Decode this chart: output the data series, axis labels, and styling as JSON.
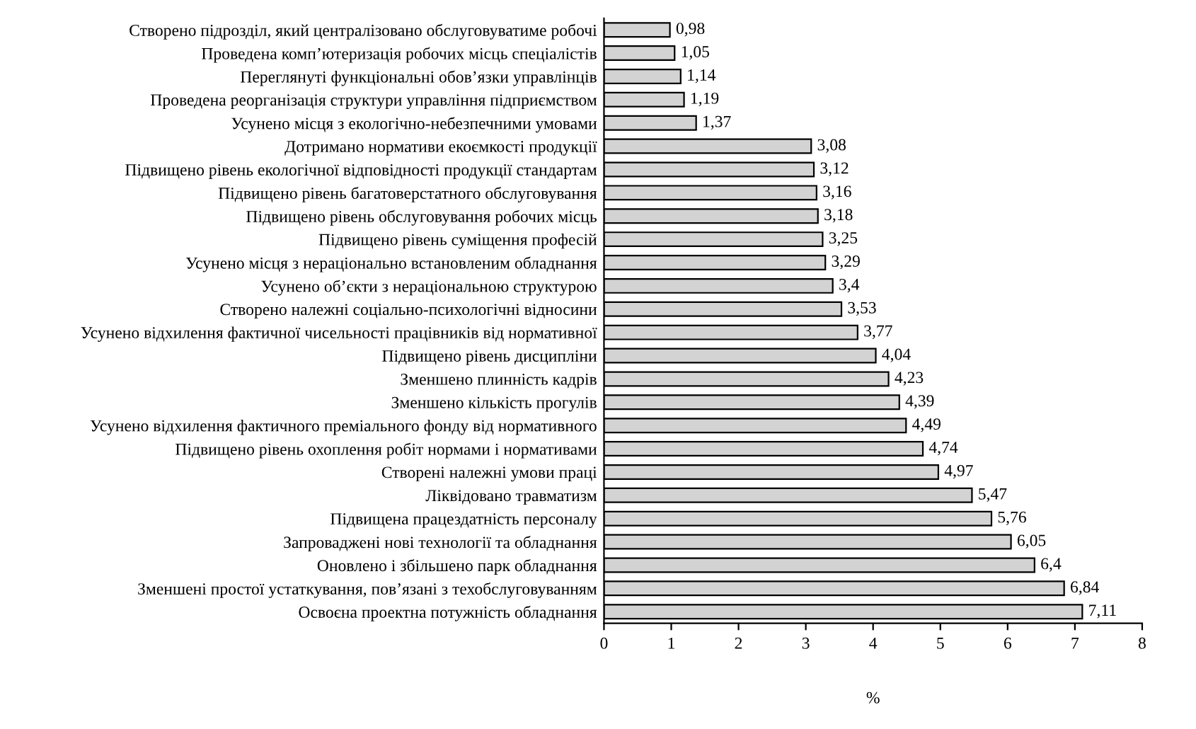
{
  "chart_data": {
    "type": "bar",
    "orientation": "horizontal",
    "xlabel": "%",
    "categories": [
      "Створено підрозділ, який централізовано обслуговуватиме робочі",
      "Проведена комп’ютеризація робочих місць спеціалістів",
      "Переглянуті функціональні обов’язки управлінців",
      "Проведена реорганізація структури управління підприємством",
      "Усунено місця з екологічно-небезпечними умовами",
      "Дотримано нормативи екоємкості продукції",
      "Підвищено рівень екологічної відповідності продукції стандартам",
      "Підвищено рівень багатоверстатного обслуговування",
      "Підвищено рівень обслуговування робочих місць",
      "Підвищено рівень суміщення професій",
      "Усунено місця з нераціонально встановленим обладнання",
      "Усунено об’єкти з нераціональною структурою",
      "Створено належні соціально-психологічні відносини",
      "Усунено відхилення фактичної чисельності працівників від нормативної",
      "Підвищено рівень дисципліни",
      "Зменшено плинність кадрів",
      "Зменшено кількість прогулів",
      "Усунено відхилення фактичного преміального фонду від нормативного",
      "Підвищено рівень охоплення робіт нормами і нормативами",
      "Створені належні умови праці",
      "Ліквідовано травматизм",
      "Підвищена працездатність персоналу",
      "Запроваджені нові технології та обладнання",
      "Оновлено і збільшено парк обладнання",
      "Зменшені простої устаткування, пов’язані з техобслуговуванням",
      "Освоєна проектна потужність обладнання"
    ],
    "values": [
      0.98,
      1.05,
      1.14,
      1.19,
      1.37,
      3.08,
      3.12,
      3.16,
      3.18,
      3.25,
      3.29,
      3.4,
      3.53,
      3.77,
      4.04,
      4.23,
      4.39,
      4.49,
      4.74,
      4.97,
      5.47,
      5.76,
      6.05,
      6.4,
      6.84,
      7.11
    ],
    "value_labels": [
      "0,98",
      "1,05",
      "1,14",
      "1,19",
      "1,37",
      "3,08",
      "3,12",
      "3,16",
      "3,18",
      "3,25",
      "3,29",
      "3,4",
      "3,53",
      "3,77",
      "4,04",
      "4,23",
      "4,39",
      "4,49",
      "4,74",
      "4,97",
      "5,47",
      "5,76",
      "6,05",
      "6,4",
      "6,84",
      "7,11"
    ],
    "color": "#d3d3d3",
    "xlim": [
      0,
      8
    ],
    "xticks": [
      0,
      1,
      2,
      3,
      4,
      5,
      6,
      7,
      8
    ]
  }
}
